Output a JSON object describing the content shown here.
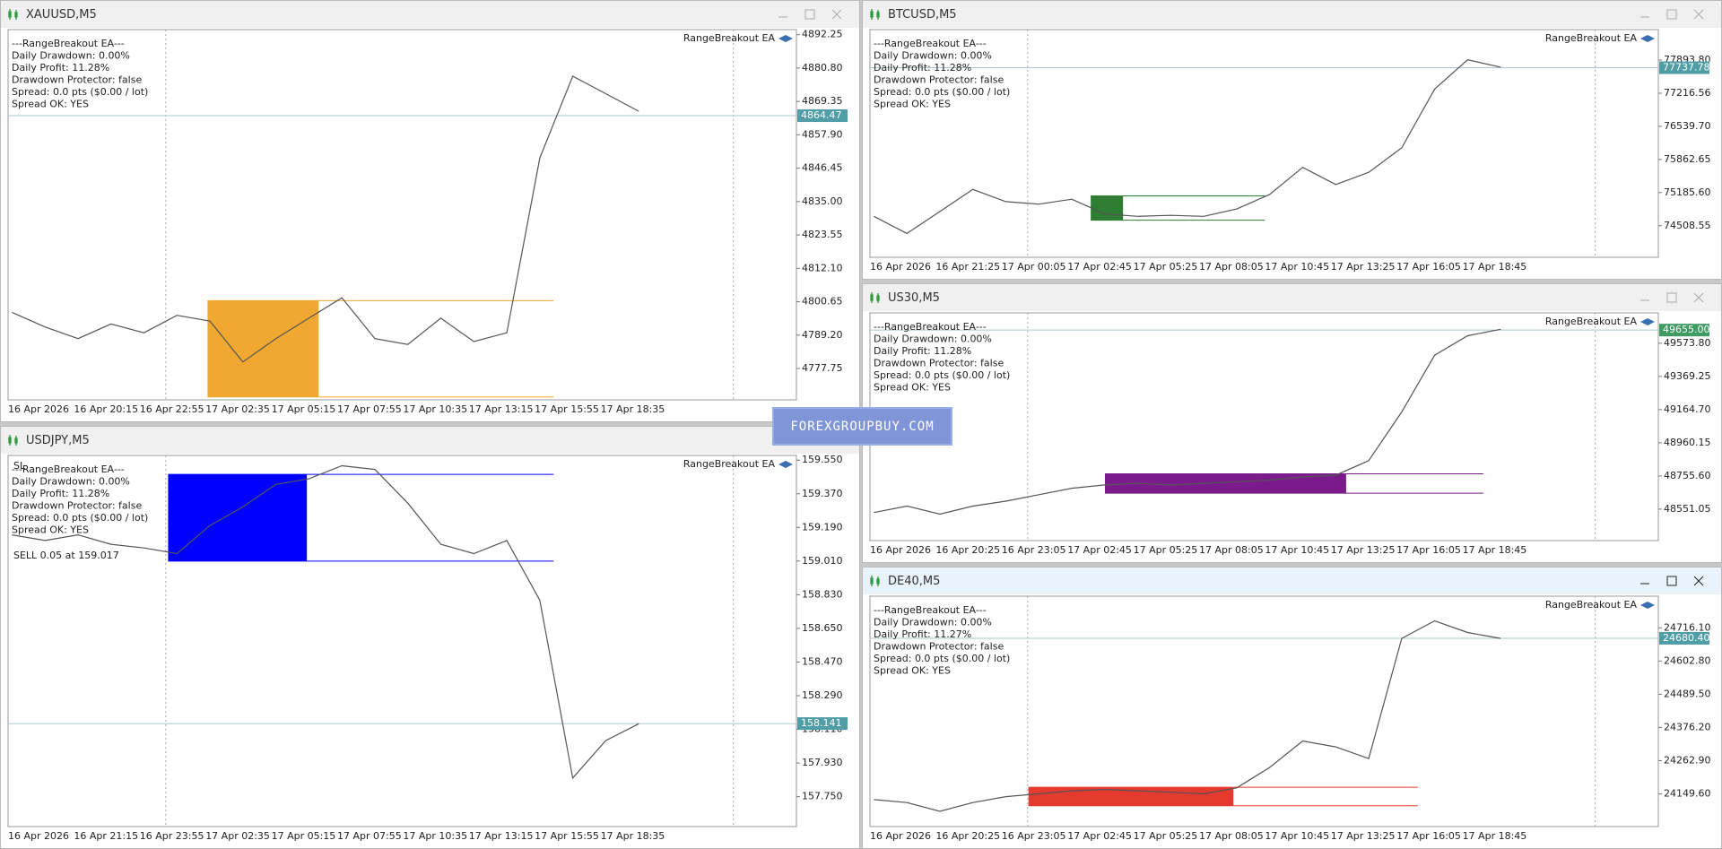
{
  "watermark": "FOREXGROUPBUY.COM",
  "windows": [
    {
      "title": "XAUUSD,M5",
      "ea_label": "RangeBreakout EA",
      "info": [
        "---RangeBreakout EA---",
        "Daily Drawdown: 0.00%",
        "Daily Profit: 11.28%",
        "Drawdown Protector: false",
        "Spread: 0.0 pts ($0.00 / lot)",
        "Spread OK: YES"
      ],
      "ylim": [
        4767,
        4894
      ],
      "yticks": [
        4892.25,
        {
          "value": 4880.8,
          "label": "4880.80"
        },
        4869.35,
        {
          "value": 4857.9,
          "label": "4857.90"
        },
        4846.45,
        {
          "value": 4835,
          "label": "4835.00"
        },
        4823.55,
        {
          "value": 4812.1,
          "label": "4812.10"
        },
        4800.65,
        {
          "value": 4789.2,
          "label": "4789.20"
        },
        4777.75
      ],
      "xlabels": [
        "16 Apr 2026",
        "16 Apr 20:15",
        "16 Apr 22:55",
        "17 Apr 02:35",
        "17 Apr 05:15",
        "17 Apr 07:55",
        "17 Apr 10:35",
        "17 Apr 13:15",
        "17 Apr 15:55",
        "17 Apr 18:35"
      ],
      "current_price": 4864.47,
      "price_label_color": "#4f9da6",
      "closes": [
        4797,
        4792,
        4788,
        4793,
        4790,
        4796,
        4794,
        4780,
        4788,
        4795,
        4802,
        4788,
        4786,
        4795,
        4787,
        4790,
        4850,
        4878,
        4872,
        4866
      ],
      "range": {
        "high": 4801,
        "low": 4768,
        "color": "#f0a830"
      }
    },
    {
      "title": "USDJPY,M5",
      "ea_label": "RangeBreakout EA",
      "info": [
        "---RangeBreakout EA---",
        "Daily Drawdown: 0.00%",
        "Daily Profit: 11.28%",
        "Drawdown Protector: false",
        "Spread: 0.0 pts ($0.00 / lot)",
        "Spread OK: YES"
      ],
      "annotations": [
        "SL",
        "SELL 0.05 at 159.017"
      ],
      "ylim": [
        157.59,
        159.575
      ],
      "yticks": [
        {
          "value": 159.55,
          "label": "159.550"
        },
        {
          "value": 159.37,
          "label": "159.370"
        },
        {
          "value": 159.19,
          "label": "159.190"
        },
        {
          "value": 159.01,
          "label": "159.010"
        },
        {
          "value": 158.83,
          "label": "158.830"
        },
        {
          "value": 158.65,
          "label": "158.650"
        },
        {
          "value": 158.47,
          "label": "158.470"
        },
        {
          "value": 158.29,
          "label": "158.290"
        },
        {
          "value": 158.11,
          "label": "158.110"
        },
        {
          "value": 157.93,
          "label": "157.930"
        },
        {
          "value": 157.75,
          "label": "157.750"
        }
      ],
      "xlabels": [
        "16 Apr 2026",
        "16 Apr 21:15",
        "16 Apr 23:55",
        "17 Apr 02:35",
        "17 Apr 05:15",
        "17 Apr 07:55",
        "17 Apr 10:35",
        "17 Apr 13:15",
        "17 Apr 15:55",
        "17 Apr 18:35"
      ],
      "current_price": 158.141,
      "price_label_color": "#4f9da6",
      "closes": [
        159.15,
        159.12,
        159.15,
        159.1,
        159.08,
        159.05,
        159.2,
        159.3,
        159.42,
        159.45,
        159.52,
        159.5,
        159.32,
        159.1,
        159.05,
        159.12,
        158.8,
        157.85,
        158.05,
        158.14
      ],
      "range": {
        "high": 159.474,
        "low": 159.01,
        "color": "#0000ff"
      }
    },
    {
      "title": "BTCUSD,M5",
      "ea_label": "RangeBreakout EA",
      "info": [
        "---RangeBreakout EA---",
        "Daily Drawdown: 0.00%",
        "Daily Profit: 11.28%",
        "Drawdown Protector: false",
        "Spread: 0.0 pts ($0.00 / lot)",
        "Spread OK: YES"
      ],
      "ylim": [
        73863,
        78517
      ],
      "yticks": [
        {
          "value": 77893.8,
          "label": "77893.80"
        },
        77216.56,
        {
          "value": 76539.7,
          "label": "76539.70"
        },
        75862.65,
        {
          "value": 75185.6,
          "label": "75185.60"
        },
        74508.55
      ],
      "xlabels": [
        "16 Apr 2026",
        "16 Apr 21:25",
        "17 Apr 00:05",
        "17 Apr 02:45",
        "17 Apr 05:25",
        "17 Apr 08:05",
        "17 Apr 10:45",
        "17 Apr 13:25",
        "17 Apr 16:05",
        "17 Apr 18:45"
      ],
      "current_price": 77737.78,
      "price_label_color": "#4f9da6",
      "closes": [
        74700,
        74350,
        74800,
        75250,
        75000,
        74950,
        75050,
        74750,
        74700,
        74720,
        74700,
        74850,
        75150,
        75700,
        75350,
        75600,
        76100,
        77300,
        77900,
        77750
      ],
      "range": {
        "high": 75119,
        "low": 74620,
        "color": "#2e7d32"
      }
    },
    {
      "title": "US30,M5",
      "ea_label": "RangeBreakout EA",
      "info": [
        "---RangeBreakout EA---",
        "Daily Drawdown: 0.00%",
        "Daily Profit: 11.28%",
        "Drawdown Protector: false",
        "Spread: 0.0 pts ($0.00 / lot)",
        "Spread OK: YES"
      ],
      "ylim": [
        48357,
        49761
      ],
      "yticks": [
        {
          "value": 49573.8,
          "label": "49573.80"
        },
        49369.25,
        {
          "value": 49164.7,
          "label": "49164.70"
        },
        48960.15,
        {
          "value": 48755.6,
          "label": "48755.60"
        },
        48551.05
      ],
      "xlabels": [
        "16 Apr 2026",
        "16 Apr 20:25",
        "16 Apr 23:05",
        "17 Apr 02:45",
        "17 Apr 05:25",
        "17 Apr 08:05",
        "17 Apr 10:45",
        "17 Apr 13:25",
        "17 Apr 16:05",
        "17 Apr 18:45"
      ],
      "current_price": {
        "value": 49655,
        "label": "49655.00"
      },
      "price_label_color": "#3f9a63",
      "closes": [
        48530,
        48570,
        48520,
        48570,
        48600,
        48640,
        48680,
        48700,
        48710,
        48700,
        48710,
        48720,
        48730,
        48750,
        48760,
        48850,
        49150,
        49500,
        49620,
        49660
      ],
      "range": {
        "high": 48769,
        "low": 48649,
        "color": "#7b1a8a"
      }
    },
    {
      "title": "DE40,M5",
      "ea_label": "RangeBreakout EA",
      "info": [
        "---RangeBreakout EA---",
        "Daily Drawdown: 0.00%",
        "Daily Profit: 11.27%",
        "Drawdown Protector: false",
        "Spread: 0.0 pts ($0.00 / lot)",
        "Spread OK: YES"
      ],
      "ylim": [
        24038,
        24824
      ],
      "yticks": [
        {
          "value": 24716.1,
          "label": "24716.10"
        },
        {
          "value": 24602.8,
          "label": "24602.80"
        },
        {
          "value": 24489.5,
          "label": "24489.50"
        },
        {
          "value": 24376.2,
          "label": "24376.20"
        },
        {
          "value": 24262.9,
          "label": "24262.90"
        },
        {
          "value": 24149.6,
          "label": "24149.60"
        }
      ],
      "xlabels": [
        "16 Apr 2026",
        "16 Apr 20:25",
        "16 Apr 23:05",
        "17 Apr 02:45",
        "17 Apr 05:25",
        "17 Apr 08:05",
        "17 Apr 10:45",
        "17 Apr 13:25",
        "17 Apr 16:05",
        "17 Apr 18:45"
      ],
      "current_price": {
        "value": 24680.4,
        "label": "24680.40"
      },
      "price_label_color": "#4f9da6",
      "closes": [
        24130,
        24120,
        24090,
        24120,
        24140,
        24150,
        24160,
        24165,
        24160,
        24155,
        24150,
        24170,
        24240,
        24330,
        24310,
        24270,
        24680,
        24740,
        24700,
        24680
      ],
      "range": {
        "high": 24172,
        "low": 24109,
        "color": "#e53a2e"
      }
    }
  ]
}
